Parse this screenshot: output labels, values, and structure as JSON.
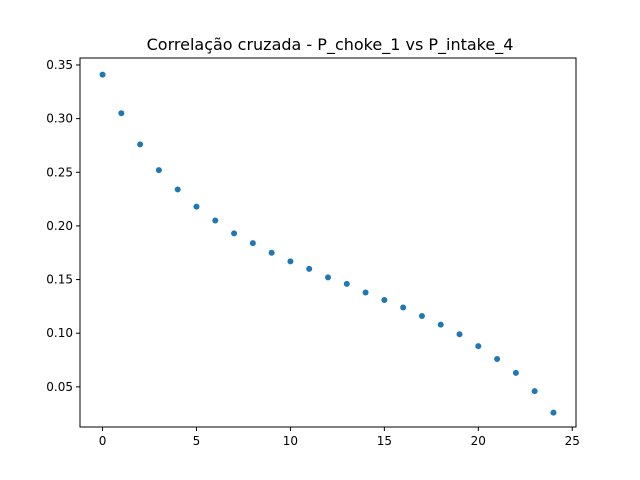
{
  "chart_data": {
    "type": "scatter",
    "title": "Correlação cruzada - P_choke_1 vs P_intake_4",
    "xlabel": "",
    "ylabel": "",
    "xlim": [
      -1.2,
      25.2
    ],
    "ylim": [
      0.0126,
      0.3565
    ],
    "x_ticks": [
      0,
      5,
      10,
      15,
      20,
      25
    ],
    "x_tick_labels": [
      "0",
      "5",
      "10",
      "15",
      "20",
      "25"
    ],
    "y_ticks": [
      0.05,
      0.1,
      0.15,
      0.2,
      0.25,
      0.3,
      0.35
    ],
    "y_tick_labels": [
      "0.05",
      "0.10",
      "0.15",
      "0.20",
      "0.25",
      "0.30",
      "0.35"
    ],
    "grid": false,
    "legend": "none",
    "color": "#1f77b4",
    "series": [
      {
        "x": [
          0,
          1,
          2,
          3,
          4,
          5,
          6,
          7,
          8,
          9,
          10,
          11,
          12,
          13,
          14,
          15,
          16,
          17,
          18,
          19,
          20,
          21,
          22,
          23,
          24
        ],
        "values": [
          0.341,
          0.305,
          0.276,
          0.252,
          0.234,
          0.218,
          0.205,
          0.193,
          0.184,
          0.175,
          0.167,
          0.16,
          0.152,
          0.146,
          0.138,
          0.131,
          0.124,
          0.116,
          0.108,
          0.099,
          0.088,
          0.076,
          0.063,
          0.046,
          0.026
        ]
      }
    ]
  }
}
